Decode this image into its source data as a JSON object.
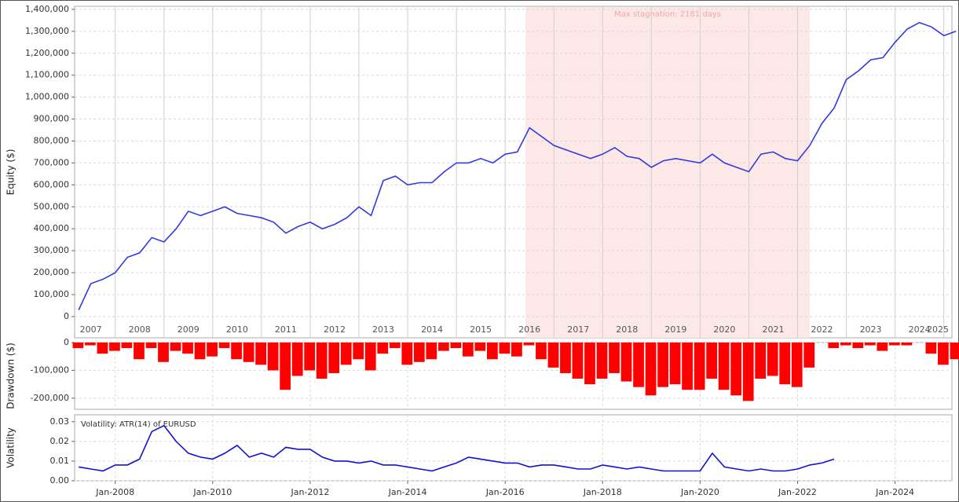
{
  "chart_data": [
    {
      "type": "line",
      "y_label": "Equity ($)",
      "x": [
        "Apr-2007",
        "Jul-2007",
        "Oct-2007",
        "Jan-2008",
        "Apr-2008",
        "Jul-2008",
        "Oct-2008",
        "Jan-2009",
        "Apr-2009",
        "Jul-2009",
        "Oct-2009",
        "Jan-2010",
        "Apr-2010",
        "Jul-2010",
        "Oct-2010",
        "Jan-2011",
        "Apr-2011",
        "Jul-2011",
        "Oct-2011",
        "Jan-2012",
        "Apr-2012",
        "Jul-2012",
        "Oct-2012",
        "Jan-2013",
        "Apr-2013",
        "Jul-2013",
        "Oct-2013",
        "Jan-2014",
        "Apr-2014",
        "Jul-2014",
        "Oct-2014",
        "Jan-2015",
        "Apr-2015",
        "Jul-2015",
        "Oct-2015",
        "Jan-2016",
        "Apr-2016",
        "Jul-2016",
        "Oct-2016",
        "Jan-2017",
        "Apr-2017",
        "Jul-2017",
        "Oct-2017",
        "Jan-2018",
        "Apr-2018",
        "Jul-2018",
        "Oct-2018",
        "Jan-2019",
        "Apr-2019",
        "Jul-2019",
        "Oct-2019",
        "Jan-2020",
        "Apr-2020",
        "Jul-2020",
        "Oct-2020",
        "Jan-2021",
        "Apr-2021",
        "Jul-2021",
        "Oct-2021",
        "Jan-2022",
        "Apr-2022",
        "Jul-2022",
        "Oct-2022",
        "Jan-2023",
        "Apr-2023",
        "Jul-2023",
        "Oct-2023",
        "Jan-2024",
        "Apr-2024",
        "Jul-2024",
        "Oct-2024",
        "Jan-2025",
        "Apr-2025"
      ],
      "series": [
        {
          "name": "Equity",
          "color": "#2f3be0",
          "values": [
            30000,
            150000,
            170000,
            200000,
            270000,
            290000,
            360000,
            340000,
            400000,
            480000,
            460000,
            480000,
            500000,
            470000,
            460000,
            450000,
            430000,
            380000,
            410000,
            430000,
            400000,
            420000,
            450000,
            500000,
            460000,
            620000,
            640000,
            600000,
            610000,
            610000,
            660000,
            700000,
            700000,
            720000,
            700000,
            740000,
            750000,
            860000,
            820000,
            780000,
            760000,
            740000,
            720000,
            740000,
            770000,
            730000,
            720000,
            680000,
            710000,
            720000,
            710000,
            700000,
            740000,
            700000,
            680000,
            660000,
            740000,
            750000,
            720000,
            710000,
            780000,
            880000,
            950000,
            1080000,
            1120000,
            1170000,
            1180000,
            1250000,
            1310000,
            1340000,
            1320000,
            1280000,
            1300000
          ]
        }
      ],
      "xlim": [
        "Mar-2007",
        "Mar-2025"
      ],
      "ylim": [
        -97000,
        1414000
      ],
      "yticks": [
        0,
        {
          "value": 100000,
          "label": "100,000"
        },
        {
          "value": 200000,
          "label": "200,000"
        },
        {
          "value": 300000,
          "label": "300,000"
        },
        {
          "value": 400000,
          "label": "400,000"
        },
        {
          "value": 500000,
          "label": "500,000"
        },
        {
          "value": 600000,
          "label": "600,000"
        },
        {
          "value": 700000,
          "label": "700,000"
        },
        {
          "value": 800000,
          "label": "800,000"
        },
        {
          "value": 900000,
          "label": "900,000"
        },
        {
          "value": 1000000,
          "label": "1,000,000"
        },
        {
          "value": 1100000,
          "label": "1,100,000"
        },
        {
          "value": 1200000,
          "label": "1,200,000"
        },
        {
          "value": 1300000,
          "label": "1,300,000"
        },
        {
          "value": 1400000,
          "label": "1,400,000"
        }
      ],
      "year_labels": [
        "2007",
        "2008",
        "2009",
        "2010",
        "2011",
        "2012",
        "2013",
        "2014",
        "2015",
        "2016",
        "2017",
        "2018",
        "2019",
        "2020",
        "2021",
        "2022",
        "2023",
        "2024",
        "2025"
      ],
      "shaded_region": {
        "label": "Max stagnation: 2181 days",
        "start": "Jun-2016",
        "end": "Apr-2022",
        "color": "#fde8e8"
      },
      "grid": true
    },
    {
      "type": "bar",
      "y_label": "Drawdown ($)",
      "x": [
        "Apr-2007",
        "Jul-2007",
        "Oct-2007",
        "Jan-2008",
        "Apr-2008",
        "Jul-2008",
        "Oct-2008",
        "Jan-2009",
        "Apr-2009",
        "Jul-2009",
        "Oct-2009",
        "Jan-2010",
        "Apr-2010",
        "Jul-2010",
        "Oct-2010",
        "Jan-2011",
        "Apr-2011",
        "Jul-2011",
        "Oct-2011",
        "Jan-2012",
        "Apr-2012",
        "Jul-2012",
        "Oct-2012",
        "Jan-2013",
        "Apr-2013",
        "Jul-2013",
        "Oct-2013",
        "Jan-2014",
        "Apr-2014",
        "Jul-2014",
        "Oct-2014",
        "Jan-2015",
        "Apr-2015",
        "Jul-2015",
        "Oct-2015",
        "Jan-2016",
        "Apr-2016",
        "Jul-2016",
        "Oct-2016",
        "Jan-2017",
        "Apr-2017",
        "Jul-2017",
        "Oct-2017",
        "Jan-2018",
        "Apr-2018",
        "Jul-2018",
        "Oct-2018",
        "Jan-2019",
        "Apr-2019",
        "Jul-2019",
        "Oct-2019",
        "Jan-2020",
        "Apr-2020",
        "Jul-2020",
        "Oct-2020",
        "Jan-2021",
        "Apr-2021",
        "Jul-2021",
        "Oct-2021",
        "Jan-2022",
        "Apr-2022",
        "Jul-2022",
        "Oct-2022",
        "Jan-2023",
        "Apr-2023",
        "Jul-2023",
        "Oct-2023",
        "Jan-2024",
        "Apr-2024",
        "Jul-2024",
        "Oct-2024",
        "Jan-2025",
        "Apr-2025"
      ],
      "series": [
        {
          "name": "Drawdown",
          "color": "#ff0000",
          "values": [
            -20000,
            -10000,
            -40000,
            -30000,
            -20000,
            -60000,
            -20000,
            -70000,
            -30000,
            -40000,
            -60000,
            -50000,
            -20000,
            -60000,
            -70000,
            -80000,
            -100000,
            -170000,
            -120000,
            -100000,
            -130000,
            -110000,
            -80000,
            -60000,
            -100000,
            -40000,
            -20000,
            -80000,
            -70000,
            -60000,
            -30000,
            -20000,
            -50000,
            -30000,
            -60000,
            -40000,
            -50000,
            -10000,
            -60000,
            -90000,
            -110000,
            -130000,
            -150000,
            -130000,
            -110000,
            -140000,
            -160000,
            -190000,
            -160000,
            -150000,
            -170000,
            -170000,
            -130000,
            -170000,
            -190000,
            -210000,
            -130000,
            -120000,
            -150000,
            -160000,
            -90000,
            0,
            -20000,
            -10000,
            -20000,
            -10000,
            -30000,
            -10000,
            -10000,
            0,
            -40000,
            -80000,
            -60000
          ]
        }
      ],
      "xlim": [
        "Mar-2007",
        "Mar-2025"
      ],
      "ylim": [
        -240000,
        0
      ],
      "yticks": [
        0,
        {
          "value": -100000,
          "label": "-100,000"
        },
        {
          "value": -200000,
          "label": "-200,000"
        }
      ],
      "grid": true
    },
    {
      "type": "line",
      "y_label": "Volatility",
      "x": [
        "Apr-2007",
        "Jul-2007",
        "Oct-2007",
        "Jan-2008",
        "Apr-2008",
        "Jul-2008",
        "Oct-2008",
        "Jan-2009",
        "Apr-2009",
        "Jul-2009",
        "Oct-2009",
        "Jan-2010",
        "Apr-2010",
        "Jul-2010",
        "Oct-2010",
        "Jan-2011",
        "Apr-2011",
        "Jul-2011",
        "Oct-2011",
        "Jan-2012",
        "Apr-2012",
        "Jul-2012",
        "Oct-2012",
        "Jan-2013",
        "Apr-2013",
        "Jul-2013",
        "Oct-2013",
        "Jan-2014",
        "Apr-2014",
        "Jul-2014",
        "Oct-2014",
        "Jan-2015",
        "Apr-2015",
        "Jul-2015",
        "Oct-2015",
        "Jan-2016",
        "Apr-2016",
        "Jul-2016",
        "Oct-2016",
        "Jan-2017",
        "Apr-2017",
        "Jul-2017",
        "Oct-2017",
        "Jan-2018",
        "Apr-2018",
        "Jul-2018",
        "Oct-2018",
        "Jan-2019",
        "Apr-2019",
        "Jul-2019",
        "Oct-2019",
        "Jan-2020",
        "Apr-2020",
        "Jul-2020",
        "Oct-2020",
        "Jan-2021",
        "Apr-2021",
        "Jul-2021",
        "Oct-2021",
        "Jan-2022",
        "Apr-2022",
        "Jul-2022",
        "Oct-2022"
      ],
      "series": [
        {
          "name": "Volatility: ATR(14) of EURUSD",
          "color": "#1010d8",
          "values": [
            0.007,
            0.006,
            0.005,
            0.008,
            0.008,
            0.011,
            0.025,
            0.028,
            0.02,
            0.014,
            0.012,
            0.011,
            0.014,
            0.018,
            0.012,
            0.014,
            0.012,
            0.017,
            0.016,
            0.016,
            0.012,
            0.01,
            0.01,
            0.009,
            0.01,
            0.008,
            0.008,
            0.007,
            0.006,
            0.005,
            0.007,
            0.009,
            0.012,
            0.011,
            0.01,
            0.009,
            0.009,
            0.007,
            0.008,
            0.008,
            0.007,
            0.006,
            0.006,
            0.008,
            0.007,
            0.006,
            0.007,
            0.006,
            0.005,
            0.005,
            0.005,
            0.005,
            0.014,
            0.007,
            0.006,
            0.005,
            0.006,
            0.005,
            0.005,
            0.006,
            0.008,
            0.009,
            0.011
          ]
        }
      ],
      "xlim": [
        "Mar-2007",
        "Mar-2025"
      ],
      "ylim": [
        0,
        0.0335
      ],
      "yticks": [
        {
          "value": 0,
          "label": "0.00"
        },
        {
          "value": 0.01,
          "label": "0.01"
        },
        {
          "value": 0.02,
          "label": "0.02"
        },
        {
          "value": 0.03,
          "label": "0.03"
        }
      ],
      "xticks": [
        "Jan-2008",
        "Jan-2010",
        "Jan-2012",
        "Jan-2014",
        "Jan-2016",
        "Jan-2018",
        "Jan-2020",
        "Jan-2022",
        "Jan-2024"
      ],
      "grid": true
    }
  ]
}
